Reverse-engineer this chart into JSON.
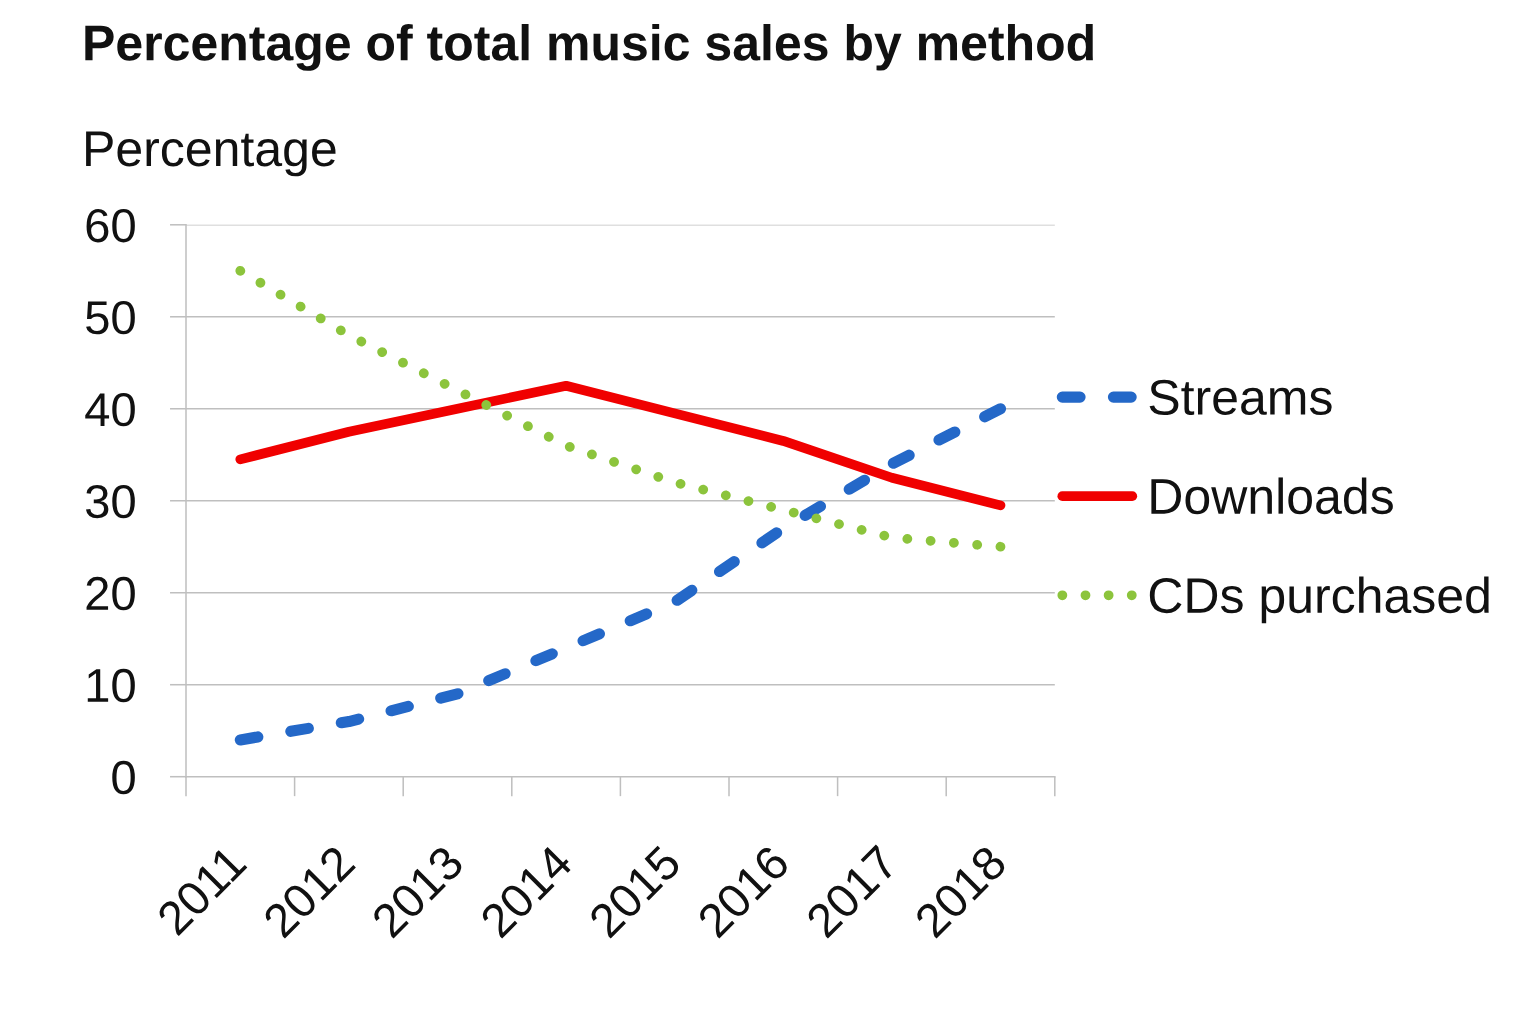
{
  "chart_data": {
    "type": "line",
    "title": "Percentage of total music sales by method",
    "ylabel": "Percentage",
    "categories": [
      "2011",
      "2012",
      "2013",
      "2014",
      "2015",
      "2016",
      "2017",
      "2018"
    ],
    "series": [
      {
        "name": "Streams",
        "color": "#2468c8",
        "line_style": "dashed",
        "values": [
          4,
          6,
          9,
          14,
          19,
          27,
          34,
          40
        ]
      },
      {
        "name": "Downloads",
        "color": "#f00000",
        "line_style": "solid",
        "values": [
          34.5,
          37.5,
          40,
          42.5,
          39.5,
          36.5,
          32.5,
          29.5
        ]
      },
      {
        "name": "CDs purchased",
        "color": "#8cc43c",
        "line_style": "dotted",
        "values": [
          55,
          48,
          42,
          36,
          32,
          29,
          26,
          25
        ]
      }
    ],
    "ylim": [
      0,
      60
    ],
    "yticks": [
      0,
      10,
      20,
      30,
      40,
      50,
      60
    ],
    "grid": "y",
    "legend": "right"
  }
}
